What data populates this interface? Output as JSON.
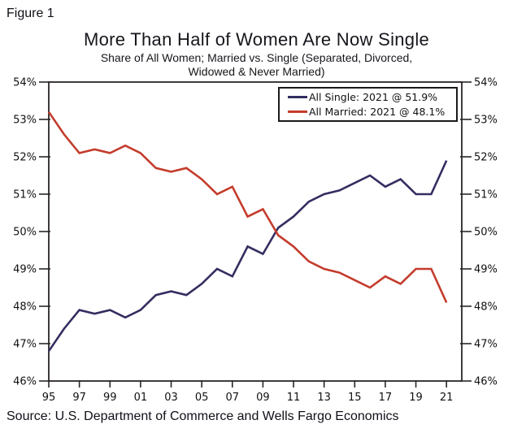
{
  "figure_label": "Figure 1",
  "title": "More Than Half of Women Are Now Single",
  "subtitle_line1": "Share of All Women; Married vs. Single (Separated, Divorced,",
  "subtitle_line2": "Widowed & Never Married)",
  "source": "Source: U.S. Department of Commerce and Wells Fargo Economics",
  "colors": {
    "single": "#332e60",
    "married": "#c43c2c",
    "axis": "#2a2627",
    "text": "#111111"
  },
  "chart_data": {
    "type": "line",
    "title": "More Than Half of Women Are Now Single",
    "subtitle": "Share of All Women; Married vs. Single (Separated, Divorced, Widowed & Never Married)",
    "x": [
      1995,
      1996,
      1997,
      1998,
      1999,
      2000,
      2001,
      2002,
      2003,
      2004,
      2005,
      2006,
      2007,
      2008,
      2009,
      2010,
      2011,
      2012,
      2013,
      2014,
      2015,
      2016,
      2017,
      2018,
      2019,
      2020,
      2021
    ],
    "series": [
      {
        "key": "single",
        "name": "All Single: 2021 @ 51.9%",
        "values": [
          46.8,
          47.4,
          47.9,
          47.8,
          47.9,
          47.7,
          47.9,
          48.3,
          48.4,
          48.3,
          48.6,
          49.0,
          48.8,
          49.6,
          49.4,
          50.1,
          50.4,
          50.8,
          51.0,
          51.1,
          51.3,
          51.5,
          51.2,
          51.4,
          51.0,
          51.0,
          51.9
        ]
      },
      {
        "key": "married",
        "name": "All Married: 2021 @ 48.1%",
        "values": [
          53.2,
          52.6,
          52.1,
          52.2,
          52.1,
          52.3,
          52.1,
          51.7,
          51.6,
          51.7,
          51.4,
          51.0,
          51.2,
          50.4,
          50.6,
          49.9,
          49.6,
          49.2,
          49.0,
          48.9,
          48.7,
          48.5,
          48.8,
          48.6,
          49.0,
          49.0,
          48.1
        ]
      }
    ],
    "xlim": [
      1995,
      2022
    ],
    "ylim": [
      46,
      54
    ],
    "grid": false,
    "legend_position": "top-right",
    "yticks": [
      {
        "value": 46,
        "label": "46%"
      },
      {
        "value": 47,
        "label": "47%"
      },
      {
        "value": 48,
        "label": "48%"
      },
      {
        "value": 49,
        "label": "49%"
      },
      {
        "value": 50,
        "label": "50%"
      },
      {
        "value": 51,
        "label": "51%"
      },
      {
        "value": 52,
        "label": "52%"
      },
      {
        "value": 53,
        "label": "53%"
      },
      {
        "value": 54,
        "label": "54%"
      }
    ],
    "xticks": [
      {
        "value": 1995,
        "label": "95"
      },
      {
        "value": 1997,
        "label": "97"
      },
      {
        "value": 1999,
        "label": "99"
      },
      {
        "value": 2001,
        "label": "01"
      },
      {
        "value": 2003,
        "label": "03"
      },
      {
        "value": 2005,
        "label": "05"
      },
      {
        "value": 2007,
        "label": "07"
      },
      {
        "value": 2009,
        "label": "09"
      },
      {
        "value": 2011,
        "label": "11"
      },
      {
        "value": 2013,
        "label": "13"
      },
      {
        "value": 2015,
        "label": "15"
      },
      {
        "value": 2017,
        "label": "17"
      },
      {
        "value": 2019,
        "label": "19"
      },
      {
        "value": 2021,
        "label": "21"
      }
    ]
  }
}
